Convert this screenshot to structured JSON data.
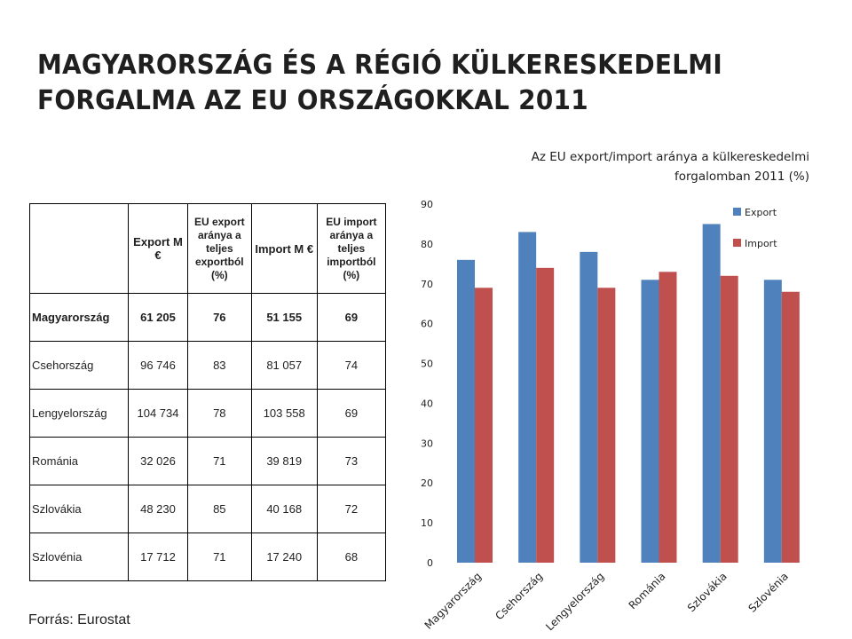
{
  "title": [
    "MAGYARORSZÁG ÉS A RÉGIÓ KÜLKERESKEDELMI",
    "FORGALMA AZ EU ORSZÁGOKKAL 2011"
  ],
  "table": {
    "headers": [
      "",
      "Export M €",
      "EU export aránya a teljes exportból (%)",
      "Import M €",
      "EU import aránya a teljes importból (%)"
    ],
    "rows": [
      [
        "Magyarország",
        "61 205",
        "76",
        "51 155",
        "69"
      ],
      [
        "Csehország",
        "96 746",
        "83",
        "81 057",
        "74"
      ],
      [
        "Lengyelország",
        "104 734",
        "78",
        "103 558",
        "69"
      ],
      [
        "Románia",
        "32 026",
        "71",
        "39 819",
        "73"
      ],
      [
        "Szlovákia",
        "48 230",
        "85",
        "40 168",
        "72"
      ],
      [
        "Szlovénia",
        "17 712",
        "71",
        "17 240",
        "68"
      ]
    ]
  },
  "source": "Forrás: Eurostat",
  "colors": {
    "export": "#4f81bd",
    "import": "#c0504d",
    "text": "#1f1f1f"
  },
  "chart_data": {
    "type": "bar",
    "title": [
      "Az EU export/import aránya a külkereskedelmi",
      "forgalomban  2011 (%)"
    ],
    "categories": [
      "Magyarország",
      "Csehország",
      "Lengyelország",
      "Románia",
      "Szlovákia",
      "Szlovénia"
    ],
    "series": [
      {
        "name": "Export",
        "values": [
          76,
          83,
          78,
          71,
          85,
          71
        ]
      },
      {
        "name": "Import",
        "values": [
          69,
          74,
          69,
          73,
          72,
          68
        ]
      }
    ],
    "yticks": [
      0,
      10,
      20,
      30,
      40,
      50,
      60,
      70,
      80,
      90
    ],
    "ylim": [
      0,
      90
    ],
    "grid": false,
    "legend": "top-right"
  }
}
